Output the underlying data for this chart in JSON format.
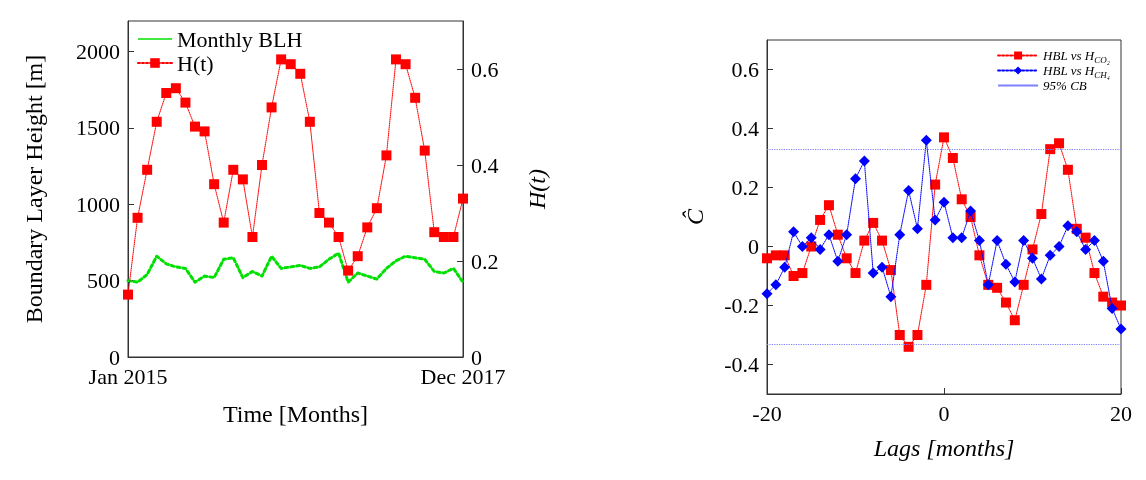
{
  "chart_data": [
    {
      "type": "line",
      "xlabel": "Time [Months]",
      "ylabel": "Boundary Layer Height [m]",
      "y2label": "H(t)",
      "categories": [
        "Jan 2015",
        null,
        null,
        null,
        null,
        null,
        null,
        null,
        null,
        null,
        null,
        null,
        null,
        null,
        null,
        null,
        null,
        null,
        null,
        null,
        null,
        null,
        null,
        null,
        null,
        null,
        null,
        null,
        null,
        null,
        null,
        null,
        null,
        null,
        null,
        "Dec 2017"
      ],
      "ylim": [
        0,
        2200
      ],
      "yticks": [
        0,
        500,
        1000,
        1500,
        2000
      ],
      "y2lim": [
        0,
        0.7
      ],
      "y2ticks": [
        0,
        0.2,
        0.4,
        0.6
      ],
      "grid": false,
      "legend": "top left",
      "line_style": "dotted",
      "series": [
        {
          "name": "Monthly BLH",
          "color": "#00e000",
          "marker": "none",
          "values": [
            500,
            490,
            540,
            660,
            610,
            590,
            580,
            490,
            530,
            520,
            640,
            650,
            520,
            560,
            530,
            660,
            580,
            590,
            600,
            580,
            590,
            640,
            680,
            490,
            550,
            530,
            510,
            580,
            630,
            660,
            650,
            640,
            560,
            550,
            580,
            490
          ]
        },
        {
          "name": "H(t)",
          "color": "#ff0000",
          "marker": "square",
          "axis": "y2",
          "values": [
            0.13,
            0.29,
            0.39,
            0.49,
            0.55,
            0.56,
            0.53,
            0.48,
            0.47,
            0.36,
            0.28,
            0.39,
            0.37,
            0.25,
            0.4,
            0.52,
            0.62,
            0.61,
            0.59,
            0.49,
            0.3,
            0.28,
            0.25,
            0.18,
            0.21,
            0.27,
            0.31,
            0.42,
            0.62,
            0.61,
            0.54,
            0.43,
            0.26,
            0.25,
            0.25,
            0.33
          ]
        }
      ]
    },
    {
      "type": "line",
      "xlabel": "Lags [months]",
      "ylabel": "Ĉ",
      "x": [
        -20,
        -19,
        -18,
        -17,
        -16,
        -15,
        -14,
        -13,
        -12,
        -11,
        -10,
        -9,
        -8,
        -7,
        -6,
        -5,
        -4,
        -3,
        -2,
        -1,
        0,
        1,
        2,
        3,
        4,
        5,
        6,
        7,
        8,
        9,
        10,
        11,
        12,
        13,
        14,
        15,
        16,
        17,
        18,
        19,
        20
      ],
      "xlim": [
        -20,
        20
      ],
      "xticks": [
        -20,
        0,
        20
      ],
      "ylim": [
        -0.5,
        0.7
      ],
      "yticks": [
        -0.4,
        -0.2,
        0,
        0.2,
        0.4,
        0.6
      ],
      "grid": false,
      "legend": "top right",
      "line_style": "dotted",
      "series": [
        {
          "name": "HBL vs H$_{CO₂}$",
          "color": "#ff0000",
          "marker": "square",
          "values": [
            -0.04,
            -0.03,
            -0.03,
            -0.1,
            -0.09,
            0,
            0.09,
            0.14,
            0.04,
            -0.04,
            -0.09,
            0.02,
            0.08,
            0.02,
            -0.08,
            -0.3,
            -0.34,
            -0.3,
            -0.13,
            0.21,
            0.37,
            0.3,
            0.16,
            0.1,
            -0.03,
            -0.13,
            -0.14,
            -0.19,
            -0.25,
            -0.13,
            -0.01,
            0.11,
            0.33,
            0.35,
            0.26,
            0.06,
            0.03,
            -0.09,
            -0.17,
            -0.19,
            -0.2
          ]
        },
        {
          "name": "HBL vs H$_{CH₄}$",
          "color": "#0000ff",
          "marker": "diamond",
          "values": [
            -0.16,
            -0.13,
            -0.07,
            0.05,
            0,
            0.03,
            -0.01,
            0.04,
            -0.05,
            0.04,
            0.23,
            0.29,
            -0.09,
            -0.07,
            -0.17,
            0.04,
            0.19,
            0.06,
            0.36,
            0.09,
            0.15,
            0.03,
            0.03,
            0.12,
            0.02,
            -0.13,
            0.02,
            -0.06,
            -0.12,
            0.02,
            -0.04,
            -0.11,
            -0.03,
            0,
            0.07,
            0.05,
            -0.01,
            0.02,
            -0.05,
            -0.21,
            -0.28
          ]
        }
      ],
      "ref_lines": [
        {
          "axis": "y",
          "value": 0.33,
          "label": "95% CB",
          "color": "#8080ff",
          "line_style": "dotted"
        },
        {
          "axis": "y",
          "value": -0.33,
          "label": null,
          "color": "#8080ff",
          "line_style": "dotted"
        }
      ]
    }
  ]
}
